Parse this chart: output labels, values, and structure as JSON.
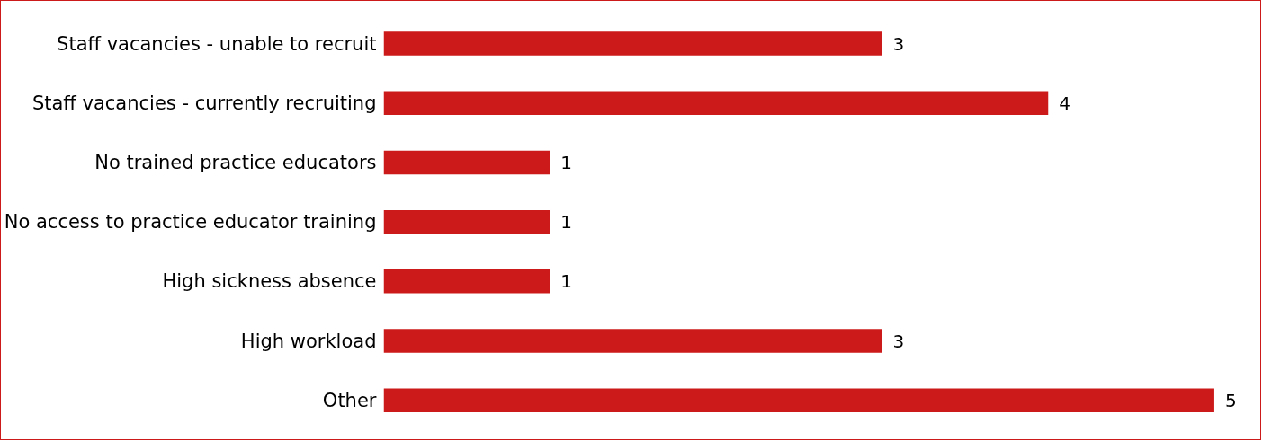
{
  "chart_data": {
    "type": "bar",
    "orientation": "horizontal",
    "categories": [
      "Staff vacancies - unable to recruit",
      "Staff vacancies - currently recruiting",
      "No trained practice educators",
      "No access to practice educator training",
      "High sickness absence",
      "High workload",
      "Other"
    ],
    "values": [
      3,
      4,
      1,
      1,
      1,
      3,
      5
    ],
    "color": "#cc1a1a",
    "data_labels": true,
    "grid": false,
    "legend": false
  }
}
